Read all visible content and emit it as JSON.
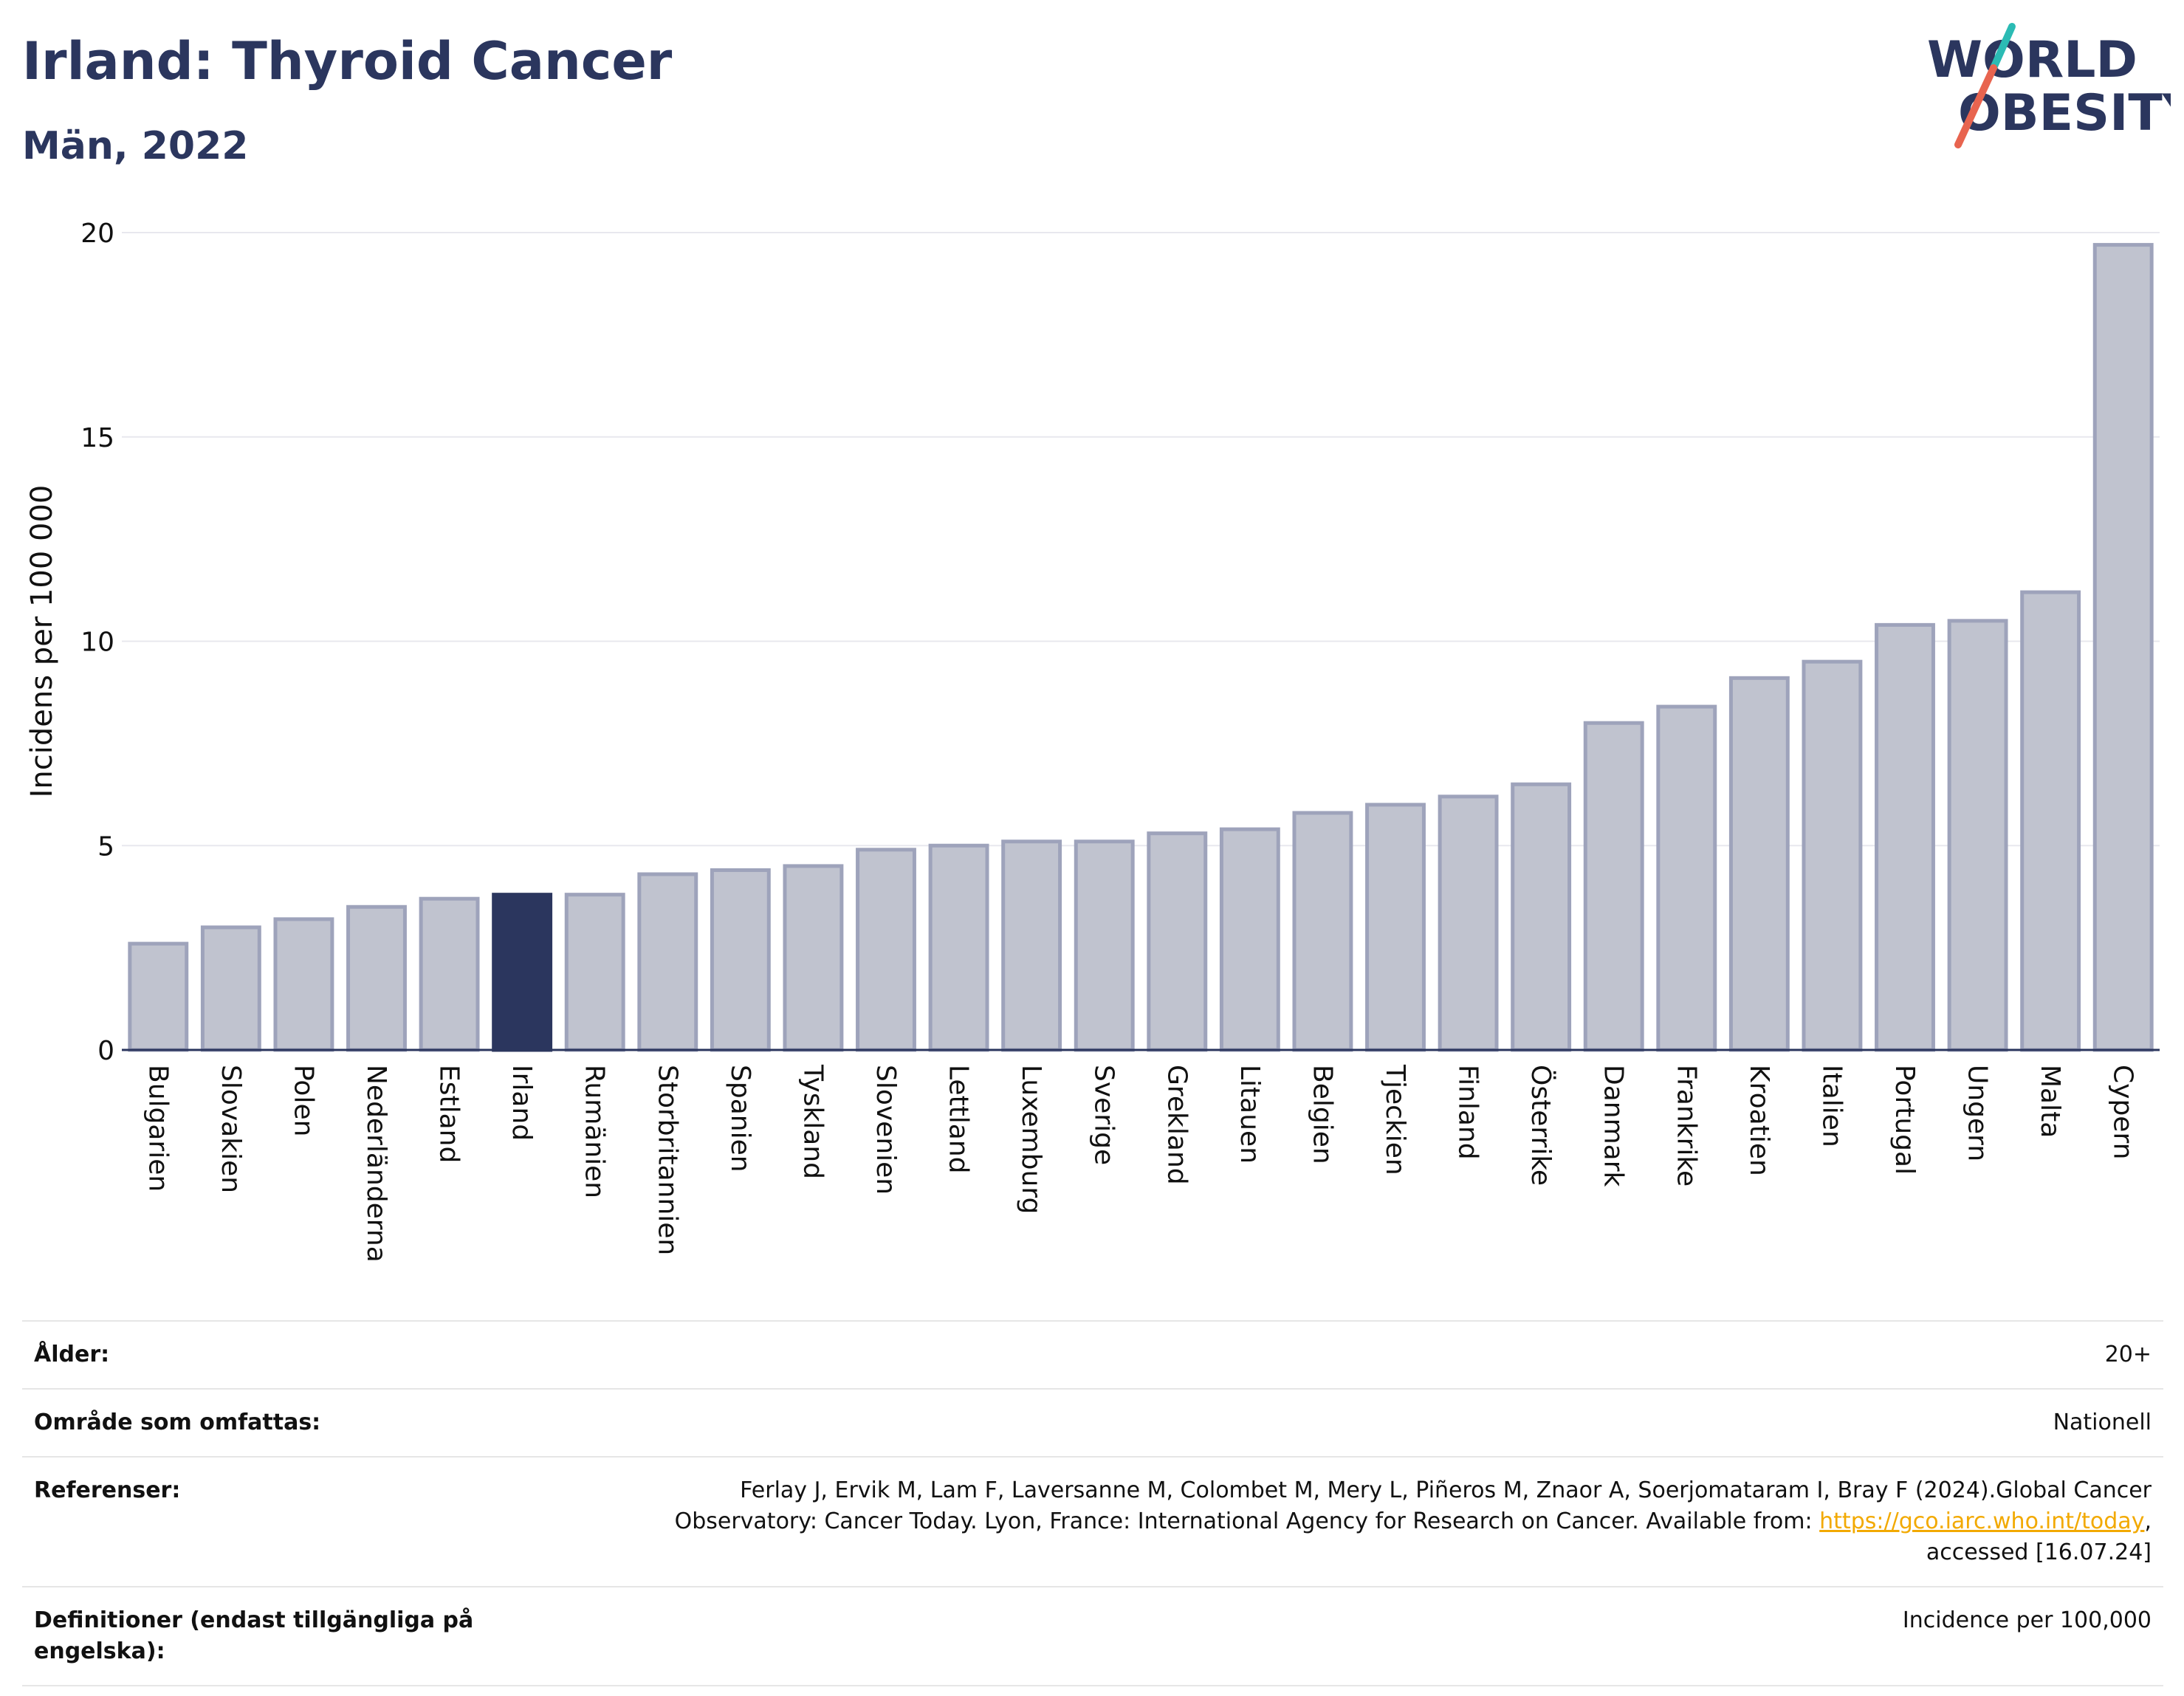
{
  "header": {
    "title": "Irland: Thyroid Cancer",
    "subtitle": "Män, 2022"
  },
  "logo": {
    "line1": "WORLD",
    "line2": "OBESITY",
    "colors": {
      "text": "#2b365e",
      "slash_teal": "#2bbbb4",
      "slash_red": "#e8644f"
    }
  },
  "chart_data": {
    "type": "bar",
    "title": "Irland: Thyroid Cancer",
    "subtitle": "Män, 2022",
    "xlabel": "",
    "ylabel": "Incidens per 100 000",
    "ylim": [
      0,
      20
    ],
    "yticks": [
      0,
      5,
      10,
      15,
      20
    ],
    "grid": true,
    "highlight": "Irland",
    "colors": {
      "bar": "#c0c3cf",
      "bar_edge": "#9ea3bb",
      "highlight": "#2b365e",
      "grid": "#e8e8ee",
      "axis": "#2b365e"
    },
    "categories": [
      "Bulgarien",
      "Slovakien",
      "Polen",
      "Nederländerna",
      "Estland",
      "Irland",
      "Rumänien",
      "Storbritannien",
      "Spanien",
      "Tyskland",
      "Slovenien",
      "Lettland",
      "Luxemburg",
      "Sverige",
      "Grekland",
      "Litauen",
      "Belgien",
      "Tjeckien",
      "Finland",
      "Österrike",
      "Danmark",
      "Frankrike",
      "Kroatien",
      "Italien",
      "Portugal",
      "Ungern",
      "Malta",
      "Cypern"
    ],
    "values": [
      2.6,
      3.0,
      3.2,
      3.5,
      3.7,
      3.8,
      3.8,
      4.3,
      4.4,
      4.5,
      4.9,
      5.0,
      5.1,
      5.1,
      5.3,
      5.4,
      5.8,
      6.0,
      6.2,
      6.5,
      8.0,
      8.4,
      9.1,
      9.5,
      10.4,
      10.5,
      11.2,
      19.7
    ]
  },
  "info": {
    "age": {
      "label": "Ålder:",
      "value": "20+"
    },
    "area": {
      "label": "Område som omfattas:",
      "value": "Nationell"
    },
    "references": {
      "label": "Referenser:",
      "text_line1": "Ferlay J, Ervik M, Lam F, Laversanne M, Colombet M, Mery L, Piñeros M, Znaor A, Soerjomataram I, Bray F (2024).Global Cancer",
      "text_line2": "Observatory: Cancer Today. Lyon, France: International Agency for Research on Cancer. Available from:",
      "link": "https://gco.iarc.who.int/today",
      "text_line3": "accessed [16.07.24]"
    },
    "definitions": {
      "label": "Definitioner (endast tillgängliga på engelska):",
      "value": "Incidence per 100,000"
    }
  }
}
